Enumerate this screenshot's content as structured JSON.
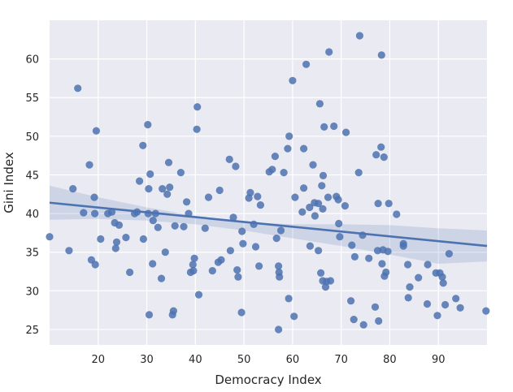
{
  "chart_data": {
    "type": "scatter",
    "xlabel": "Democracy Index",
    "ylabel": "Gini Index",
    "xlim": [
      10,
      100
    ],
    "ylim": [
      23,
      65
    ],
    "xticks": [
      20,
      30,
      40,
      50,
      60,
      70,
      80,
      90
    ],
    "yticks": [
      25,
      30,
      35,
      40,
      45,
      50,
      55,
      60
    ],
    "grid": true,
    "colors": {
      "background": "#eaeaf2",
      "grid": "#ffffff",
      "points": "#4c72b0",
      "line": "#4c72b0",
      "band": "#4c72b0"
    },
    "regression": {
      "line": [
        [
          10,
          41.4
        ],
        [
          100,
          35.8
        ]
      ],
      "ci_upper": [
        [
          10,
          43.6
        ],
        [
          20,
          42.1
        ],
        [
          30,
          40.8
        ],
        [
          40,
          39.7
        ],
        [
          50,
          38.9
        ],
        [
          60,
          38.6
        ],
        [
          70,
          38.6
        ],
        [
          80,
          38.5
        ],
        [
          90,
          38.1
        ],
        [
          100,
          37.8
        ]
      ],
      "ci_lower": [
        [
          10,
          39.2
        ],
        [
          20,
          39.3
        ],
        [
          30,
          39.1
        ],
        [
          40,
          38.6
        ],
        [
          50,
          37.8
        ],
        [
          60,
          36.8
        ],
        [
          70,
          35.8
        ],
        [
          80,
          34.7
        ],
        [
          90,
          33.5
        ],
        [
          100,
          33.8
        ]
      ]
    },
    "points": [
      [
        10.0,
        37.0
      ],
      [
        14.0,
        35.2
      ],
      [
        14.8,
        43.2
      ],
      [
        15.8,
        56.2
      ],
      [
        17.0,
        40.1
      ],
      [
        18.2,
        46.3
      ],
      [
        18.6,
        34.0
      ],
      [
        19.2,
        42.1
      ],
      [
        19.3,
        40.0
      ],
      [
        19.4,
        33.4
      ],
      [
        19.6,
        50.7
      ],
      [
        20.5,
        36.7
      ],
      [
        22.0,
        40.0
      ],
      [
        22.8,
        40.2
      ],
      [
        23.4,
        38.8
      ],
      [
        23.6,
        35.5
      ],
      [
        23.8,
        36.3
      ],
      [
        24.3,
        38.5
      ],
      [
        25.7,
        36.9
      ],
      [
        26.5,
        32.4
      ],
      [
        27.5,
        40.0
      ],
      [
        28.0,
        40.2
      ],
      [
        28.5,
        44.2
      ],
      [
        29.2,
        48.8
      ],
      [
        29.3,
        36.7
      ],
      [
        30.2,
        51.5
      ],
      [
        30.3,
        40.0
      ],
      [
        30.4,
        43.2
      ],
      [
        30.7,
        45.1
      ],
      [
        30.5,
        26.9
      ],
      [
        31.2,
        33.5
      ],
      [
        31.3,
        39.1
      ],
      [
        31.8,
        40.0
      ],
      [
        32.3,
        38.2
      ],
      [
        33.2,
        43.2
      ],
      [
        33.0,
        31.6
      ],
      [
        33.8,
        35.0
      ],
      [
        34.2,
        42.5
      ],
      [
        34.7,
        43.4
      ],
      [
        34.5,
        46.6
      ],
      [
        35.3,
        26.9
      ],
      [
        35.5,
        27.4
      ],
      [
        35.8,
        38.4
      ],
      [
        37.0,
        45.3
      ],
      [
        37.6,
        38.3
      ],
      [
        38.2,
        41.5
      ],
      [
        38.6,
        40.0
      ],
      [
        39.0,
        32.4
      ],
      [
        39.5,
        33.4
      ],
      [
        39.8,
        34.2
      ],
      [
        39.6,
        32.6
      ],
      [
        40.3,
        50.9
      ],
      [
        40.4,
        53.8
      ],
      [
        40.7,
        29.5
      ],
      [
        42.0,
        38.1
      ],
      [
        42.7,
        42.1
      ],
      [
        43.5,
        32.6
      ],
      [
        44.7,
        33.7
      ],
      [
        45.0,
        43.0
      ],
      [
        45.3,
        34.0
      ],
      [
        47.0,
        47.0
      ],
      [
        47.2,
        35.2
      ],
      [
        47.8,
        39.5
      ],
      [
        48.3,
        46.1
      ],
      [
        48.6,
        32.7
      ],
      [
        48.8,
        31.8
      ],
      [
        49.6,
        37.7
      ],
      [
        49.8,
        36.1
      ],
      [
        49.5,
        27.2
      ],
      [
        51.0,
        42.0
      ],
      [
        51.3,
        42.7
      ],
      [
        52.0,
        38.6
      ],
      [
        52.4,
        35.7
      ],
      [
        52.8,
        42.2
      ],
      [
        53.1,
        33.2
      ],
      [
        53.4,
        41.1
      ],
      [
        55.2,
        45.4
      ],
      [
        55.8,
        45.7
      ],
      [
        56.4,
        47.4
      ],
      [
        56.7,
        36.8
      ],
      [
        57.1,
        33.2
      ],
      [
        57.2,
        32.4
      ],
      [
        57.3,
        31.8
      ],
      [
        57.1,
        25.0
      ],
      [
        57.6,
        37.8
      ],
      [
        58.2,
        45.3
      ],
      [
        59.0,
        48.4
      ],
      [
        59.3,
        50.0
      ],
      [
        59.2,
        29.0
      ],
      [
        60.0,
        57.2
      ],
      [
        60.3,
        26.7
      ],
      [
        60.5,
        42.1
      ],
      [
        62.0,
        40.2
      ],
      [
        62.3,
        48.4
      ],
      [
        62.3,
        43.3
      ],
      [
        62.8,
        59.3
      ],
      [
        63.5,
        40.8
      ],
      [
        63.6,
        35.8
      ],
      [
        64.2,
        46.3
      ],
      [
        64.5,
        41.4
      ],
      [
        64.6,
        39.7
      ],
      [
        65.3,
        41.3
      ],
      [
        65.3,
        35.2
      ],
      [
        65.6,
        54.2
      ],
      [
        65.8,
        32.3
      ],
      [
        66.0,
        43.6
      ],
      [
        66.2,
        40.6
      ],
      [
        66.2,
        31.3
      ],
      [
        66.3,
        44.9
      ],
      [
        66.5,
        51.2
      ],
      [
        66.8,
        30.5
      ],
      [
        67.0,
        31.2
      ],
      [
        67.3,
        42.1
      ],
      [
        67.5,
        60.9
      ],
      [
        67.8,
        31.3
      ],
      [
        68.5,
        51.3
      ],
      [
        69.0,
        42.2
      ],
      [
        69.4,
        41.8
      ],
      [
        69.5,
        38.7
      ],
      [
        69.7,
        37.0
      ],
      [
        70.8,
        41.0
      ],
      [
        71.0,
        50.5
      ],
      [
        72.2,
        35.9
      ],
      [
        72.0,
        28.7
      ],
      [
        72.8,
        34.4
      ],
      [
        72.6,
        26.3
      ],
      [
        73.6,
        45.3
      ],
      [
        73.8,
        63.0
      ],
      [
        74.4,
        37.2
      ],
      [
        74.6,
        25.6
      ],
      [
        75.7,
        34.2
      ],
      [
        77.0,
        27.9
      ],
      [
        77.2,
        47.6
      ],
      [
        77.5,
        35.2
      ],
      [
        77.6,
        41.3
      ],
      [
        77.7,
        26.1
      ],
      [
        78.2,
        48.6
      ],
      [
        78.3,
        60.5
      ],
      [
        78.4,
        33.5
      ],
      [
        78.6,
        35.3
      ],
      [
        78.8,
        47.3
      ],
      [
        78.9,
        31.9
      ],
      [
        79.2,
        32.4
      ],
      [
        79.6,
        35.1
      ],
      [
        79.8,
        41.3
      ],
      [
        81.4,
        39.9
      ],
      [
        82.8,
        36.1
      ],
      [
        82.8,
        35.8
      ],
      [
        83.7,
        33.4
      ],
      [
        83.8,
        29.1
      ],
      [
        84.1,
        30.5
      ],
      [
        85.9,
        31.7
      ],
      [
        87.8,
        33.4
      ],
      [
        87.7,
        28.3
      ],
      [
        89.5,
        32.3
      ],
      [
        89.8,
        26.8
      ],
      [
        90.3,
        32.3
      ],
      [
        90.8,
        31.8
      ],
      [
        91.0,
        31.0
      ],
      [
        91.4,
        28.2
      ],
      [
        92.2,
        34.8
      ],
      [
        93.6,
        29.0
      ],
      [
        94.5,
        27.8
      ],
      [
        99.8,
        27.4
      ]
    ]
  }
}
